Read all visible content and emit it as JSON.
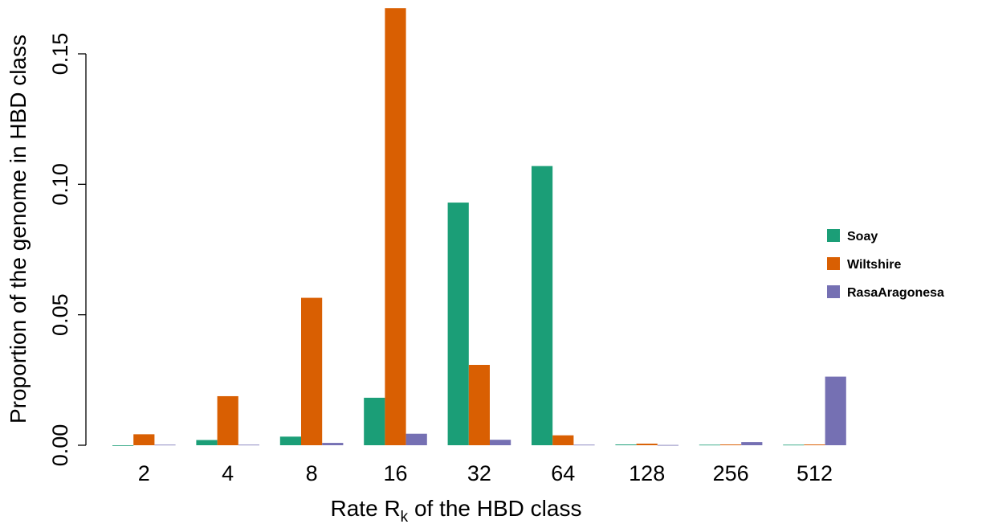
{
  "chart_data": {
    "type": "bar",
    "title": "",
    "xlabel": {
      "prefix": "Rate R",
      "subscript": "k",
      "suffix": " of the HBD class"
    },
    "ylabel": "Proportion of the genome in HBD class",
    "categories": [
      "2",
      "4",
      "8",
      "16",
      "32",
      "64",
      "128",
      "256",
      "512"
    ],
    "series": [
      {
        "name": "Soay",
        "color": "#1B9E77",
        "values": [
          0.0,
          0.002,
          0.0033,
          0.0182,
          0.093,
          0.107,
          0.0003,
          0.0002,
          0.0002
        ]
      },
      {
        "name": "Wiltshire",
        "color": "#D95F02",
        "values": [
          0.0042,
          0.0188,
          0.0565,
          0.1675,
          0.0308,
          0.0038,
          0.0006,
          0.0003,
          0.0003
        ]
      },
      {
        "name": "RasaAragonesa",
        "color": "#7570B3",
        "values": [
          0.0002,
          0.0002,
          0.0009,
          0.0044,
          0.0021,
          0.0002,
          0.0001,
          0.0012,
          0.0263
        ]
      }
    ],
    "ylim": [
      0,
      0.17
    ],
    "yticks": [
      "0.00",
      "0.05",
      "0.10",
      "0.15"
    ],
    "ytick_values": [
      0,
      0.05,
      0.1,
      0.15
    ],
    "legend_position": "right",
    "grid": false
  }
}
